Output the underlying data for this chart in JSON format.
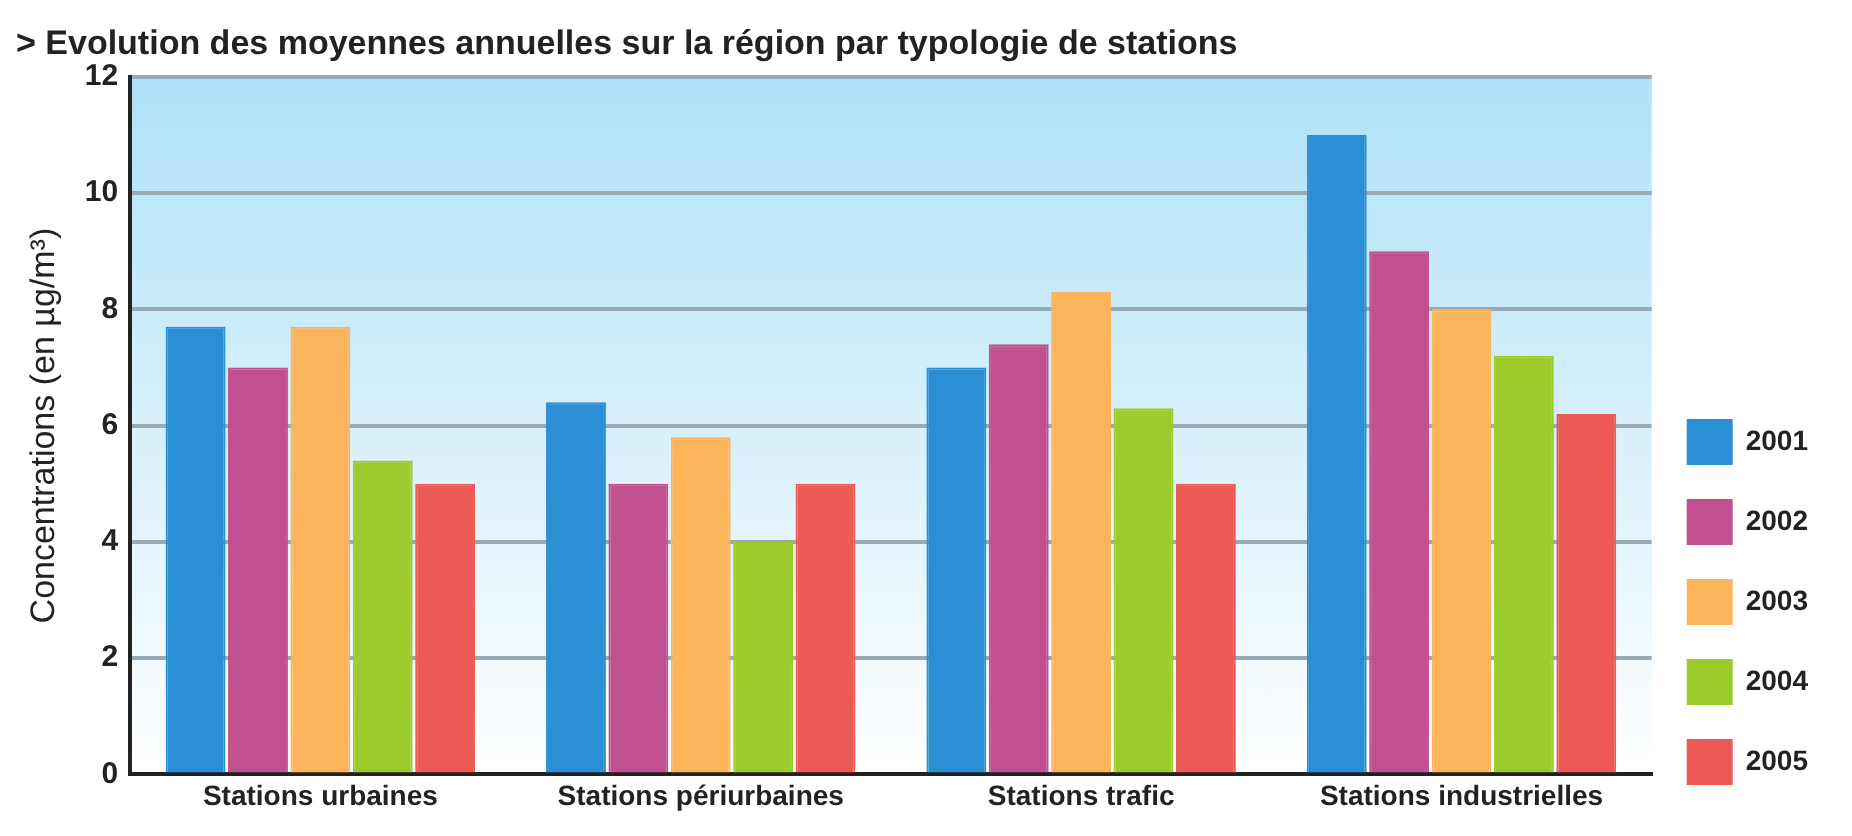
{
  "chart_data": {
    "type": "bar",
    "title": "> Evolution des moyennes annuelles sur la région par typologie de stations",
    "ylabel": "Concentrations (en µg/m³)",
    "categories": [
      "Stations urbaines",
      "Stations périurbaines",
      "Stations trafic",
      "Stations industrielles"
    ],
    "series": [
      {
        "name": "2001",
        "color": "#2b8fd6",
        "values": [
          7.7,
          6.4,
          7.0,
          11.0
        ]
      },
      {
        "name": "2002",
        "color": "#c0508f",
        "values": [
          7.0,
          5.0,
          7.4,
          9.0
        ]
      },
      {
        "name": "2003",
        "color": "#fcb45a",
        "values": [
          7.7,
          5.8,
          8.3,
          8.0
        ]
      },
      {
        "name": "2004",
        "color": "#9ccb2c",
        "values": [
          5.4,
          4.0,
          6.3,
          7.2
        ]
      },
      {
        "name": "2005",
        "color": "#ec5a55",
        "values": [
          5.0,
          5.0,
          5.0,
          6.2
        ]
      }
    ],
    "ylim": [
      0,
      12
    ],
    "yticks": [
      0,
      2,
      4,
      6,
      8,
      10,
      12
    ],
    "grid": "y",
    "legend": "bottom right"
  }
}
